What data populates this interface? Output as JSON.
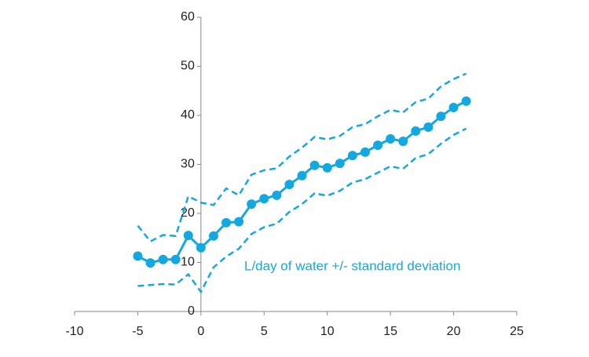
{
  "chart_data": {
    "type": "line",
    "annotation": "L/day of water +/- standard deviation",
    "x": [
      -5,
      -4,
      -3,
      -2,
      -1,
      0,
      1,
      2,
      3,
      4,
      5,
      6,
      7,
      8,
      9,
      10,
      11,
      12,
      13,
      14,
      15,
      16,
      17,
      18,
      19,
      20,
      21
    ],
    "series": [
      {
        "color": "#13a9e0",
        "style": "solid-markers",
        "values": [
          11.3,
          9.9,
          10.6,
          10.6,
          15.5,
          13.0,
          15.4,
          18.1,
          18.3,
          21.9,
          23.0,
          23.7,
          25.9,
          27.7,
          29.8,
          29.3,
          30.2,
          31.8,
          32.5,
          33.9,
          35.2,
          34.7,
          36.8,
          37.6,
          39.8,
          41.6,
          42.9
        ]
      },
      {
        "color": "#13a9e0",
        "style": "dashed",
        "values": [
          17.5,
          14.3,
          15.6,
          15.4,
          23.5,
          22.2,
          21.7,
          25.1,
          23.7,
          27.9,
          28.8,
          29.2,
          31.6,
          33.4,
          35.6,
          35.1,
          35.8,
          37.6,
          38.2,
          39.8,
          41.1,
          40.6,
          42.7,
          43.4,
          45.9,
          47.4,
          48.5
        ]
      },
      {
        "color": "#13a9e0",
        "style": "dashed",
        "values": [
          5.2,
          5.4,
          5.6,
          5.5,
          7.6,
          4.0,
          9.0,
          11.2,
          12.8,
          15.8,
          17.2,
          17.9,
          20.3,
          21.9,
          24.1,
          23.6,
          24.6,
          26.3,
          27.0,
          28.3,
          29.6,
          29.1,
          31.3,
          32.1,
          34.2,
          36.0,
          37.3
        ]
      }
    ],
    "xlim": [
      -10,
      25
    ],
    "xticks": [
      -10,
      -5,
      0,
      5,
      10,
      15,
      20,
      25
    ],
    "ylim": [
      0,
      60
    ],
    "yticks": [
      0,
      10,
      20,
      30,
      40,
      50,
      60
    ]
  }
}
